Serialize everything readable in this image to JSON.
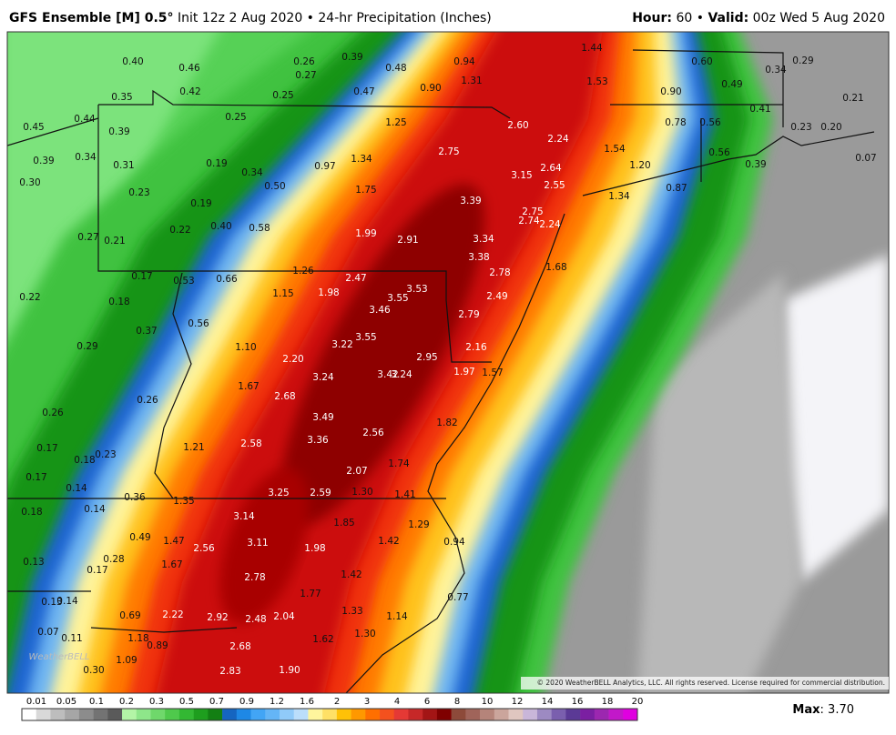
{
  "header": {
    "title": "GFS Ensemble [M] 0.5°",
    "subtitle": "Init 12z 2 Aug 2020 • 24-hr Precipitation (Inches)",
    "hour_label": "Hour:",
    "hour": "60",
    "separator": "•",
    "valid_label": "Valid:",
    "valid": "00z Wed 5 Aug 2020"
  },
  "map": {
    "watermark": "WeatherBELL",
    "copyright": "© 2020 WeatherBELL Analytics, LLC. All rights reserved. License required for commercial distribution.",
    "labels": [
      "0.40",
      "0.46",
      "0.26",
      "0.39",
      "0.48",
      "0.94",
      "1.44",
      "0.60",
      "0.34",
      "0.29",
      "0.35",
      "0.42",
      "0.27",
      "0.25",
      "0.47",
      "0.90",
      "1.31",
      "1.53",
      "0.90",
      "0.49",
      "0.21",
      "0.45",
      "0.44",
      "0.39",
      "0.25",
      "1.25",
      "2.60",
      "0.78",
      "0.56",
      "0.41",
      "0.23",
      "0.20",
      "0.39",
      "0.34",
      "0.31",
      "0.19",
      "0.34",
      "0.97",
      "1.34",
      "2.75",
      "2.24",
      "1.54",
      "2.64",
      "1.20",
      "0.56",
      "0.39",
      "0.07",
      "0.30",
      "0.23",
      "0.50",
      "1.75",
      "3.15",
      "2.55",
      "0.87",
      "1.34",
      "0.19",
      "3.39",
      "2.75",
      "2.74",
      "2.24",
      "0.27",
      "0.21",
      "0.22",
      "0.40",
      "0.58",
      "1.99",
      "2.91",
      "3.34",
      "3.38",
      "0.17",
      "0.53",
      "0.66",
      "1.26",
      "2.47",
      "2.78",
      "1.68",
      "0.22",
      "0.18",
      "1.15",
      "1.98",
      "3.53",
      "3.55",
      "2.49",
      "3.46",
      "2.79",
      "0.56",
      "0.37",
      "3.55",
      "3.22",
      "2.16",
      "0.29",
      "1.10",
      "2.20",
      "2.95",
      "1.97",
      "1.57",
      "3.24",
      "3.42",
      "3.24",
      "1.67",
      "2.68",
      "0.26",
      "0.26",
      "3.49",
      "1.82",
      "3.36",
      "2.56",
      "0.17",
      "0.18",
      "0.23",
      "1.21",
      "2.58",
      "1.74",
      "0.17",
      "0.14",
      "2.07",
      "0.36",
      "1.35",
      "3.25",
      "2.59",
      "1.30",
      "1.41",
      "0.18",
      "0.14",
      "3.14",
      "1.85",
      "1.29",
      "0.49",
      "1.47",
      "3.11",
      "2.56",
      "1.98",
      "1.42",
      "0.94",
      "0.13",
      "0.28",
      "0.17",
      "1.67",
      "2.78",
      "1.42",
      "1.77",
      "0.77",
      "0.13",
      "0.14",
      "0.69",
      "2.22",
      "2.92",
      "2.48",
      "2.04",
      "1.33",
      "1.14",
      "0.07",
      "0.11",
      "1.18",
      "0.89",
      "1.62",
      "1.30",
      "2.68",
      "1.09",
      "0.30",
      "2.83",
      "1.90"
    ]
  },
  "colorbar": {
    "ticks": [
      "0.01",
      "0.05",
      "0.1",
      "0.2",
      "0.3",
      "0.5",
      "0.7",
      "0.9",
      "1.2",
      "1.6",
      "2",
      "3",
      "4",
      "6",
      "8",
      "10",
      "12",
      "14",
      "16",
      "18",
      "20"
    ],
    "colors": [
      "#ffffff",
      "#d9d9d9",
      "#bdbdbd",
      "#a6a6a6",
      "#8c8c8c",
      "#737373",
      "#5a5a5a",
      "#b3f5a6",
      "#8ee68a",
      "#6fd86b",
      "#4fc94c",
      "#33b833",
      "#1e9e1e",
      "#137f13",
      "#1565c0",
      "#1e88e5",
      "#42a5f5",
      "#64b5f6",
      "#90caf9",
      "#bbdefb",
      "#fff59d",
      "#ffe066",
      "#ffc107",
      "#ff9800",
      "#ff6f00",
      "#f4511e",
      "#e53935",
      "#c62828",
      "#a31515",
      "#7f0000",
      "#8d4a3a",
      "#a0645a",
      "#b5847a",
      "#cba59c",
      "#e0c6c0",
      "#c9b6d9",
      "#9d8ac2",
      "#7a5fae",
      "#5b3a96",
      "#7b1fa2",
      "#9c27b0",
      "#c218c9",
      "#e000e0"
    ]
  },
  "footer": {
    "max_label": "Max",
    "max_value": ": 3.70"
  }
}
